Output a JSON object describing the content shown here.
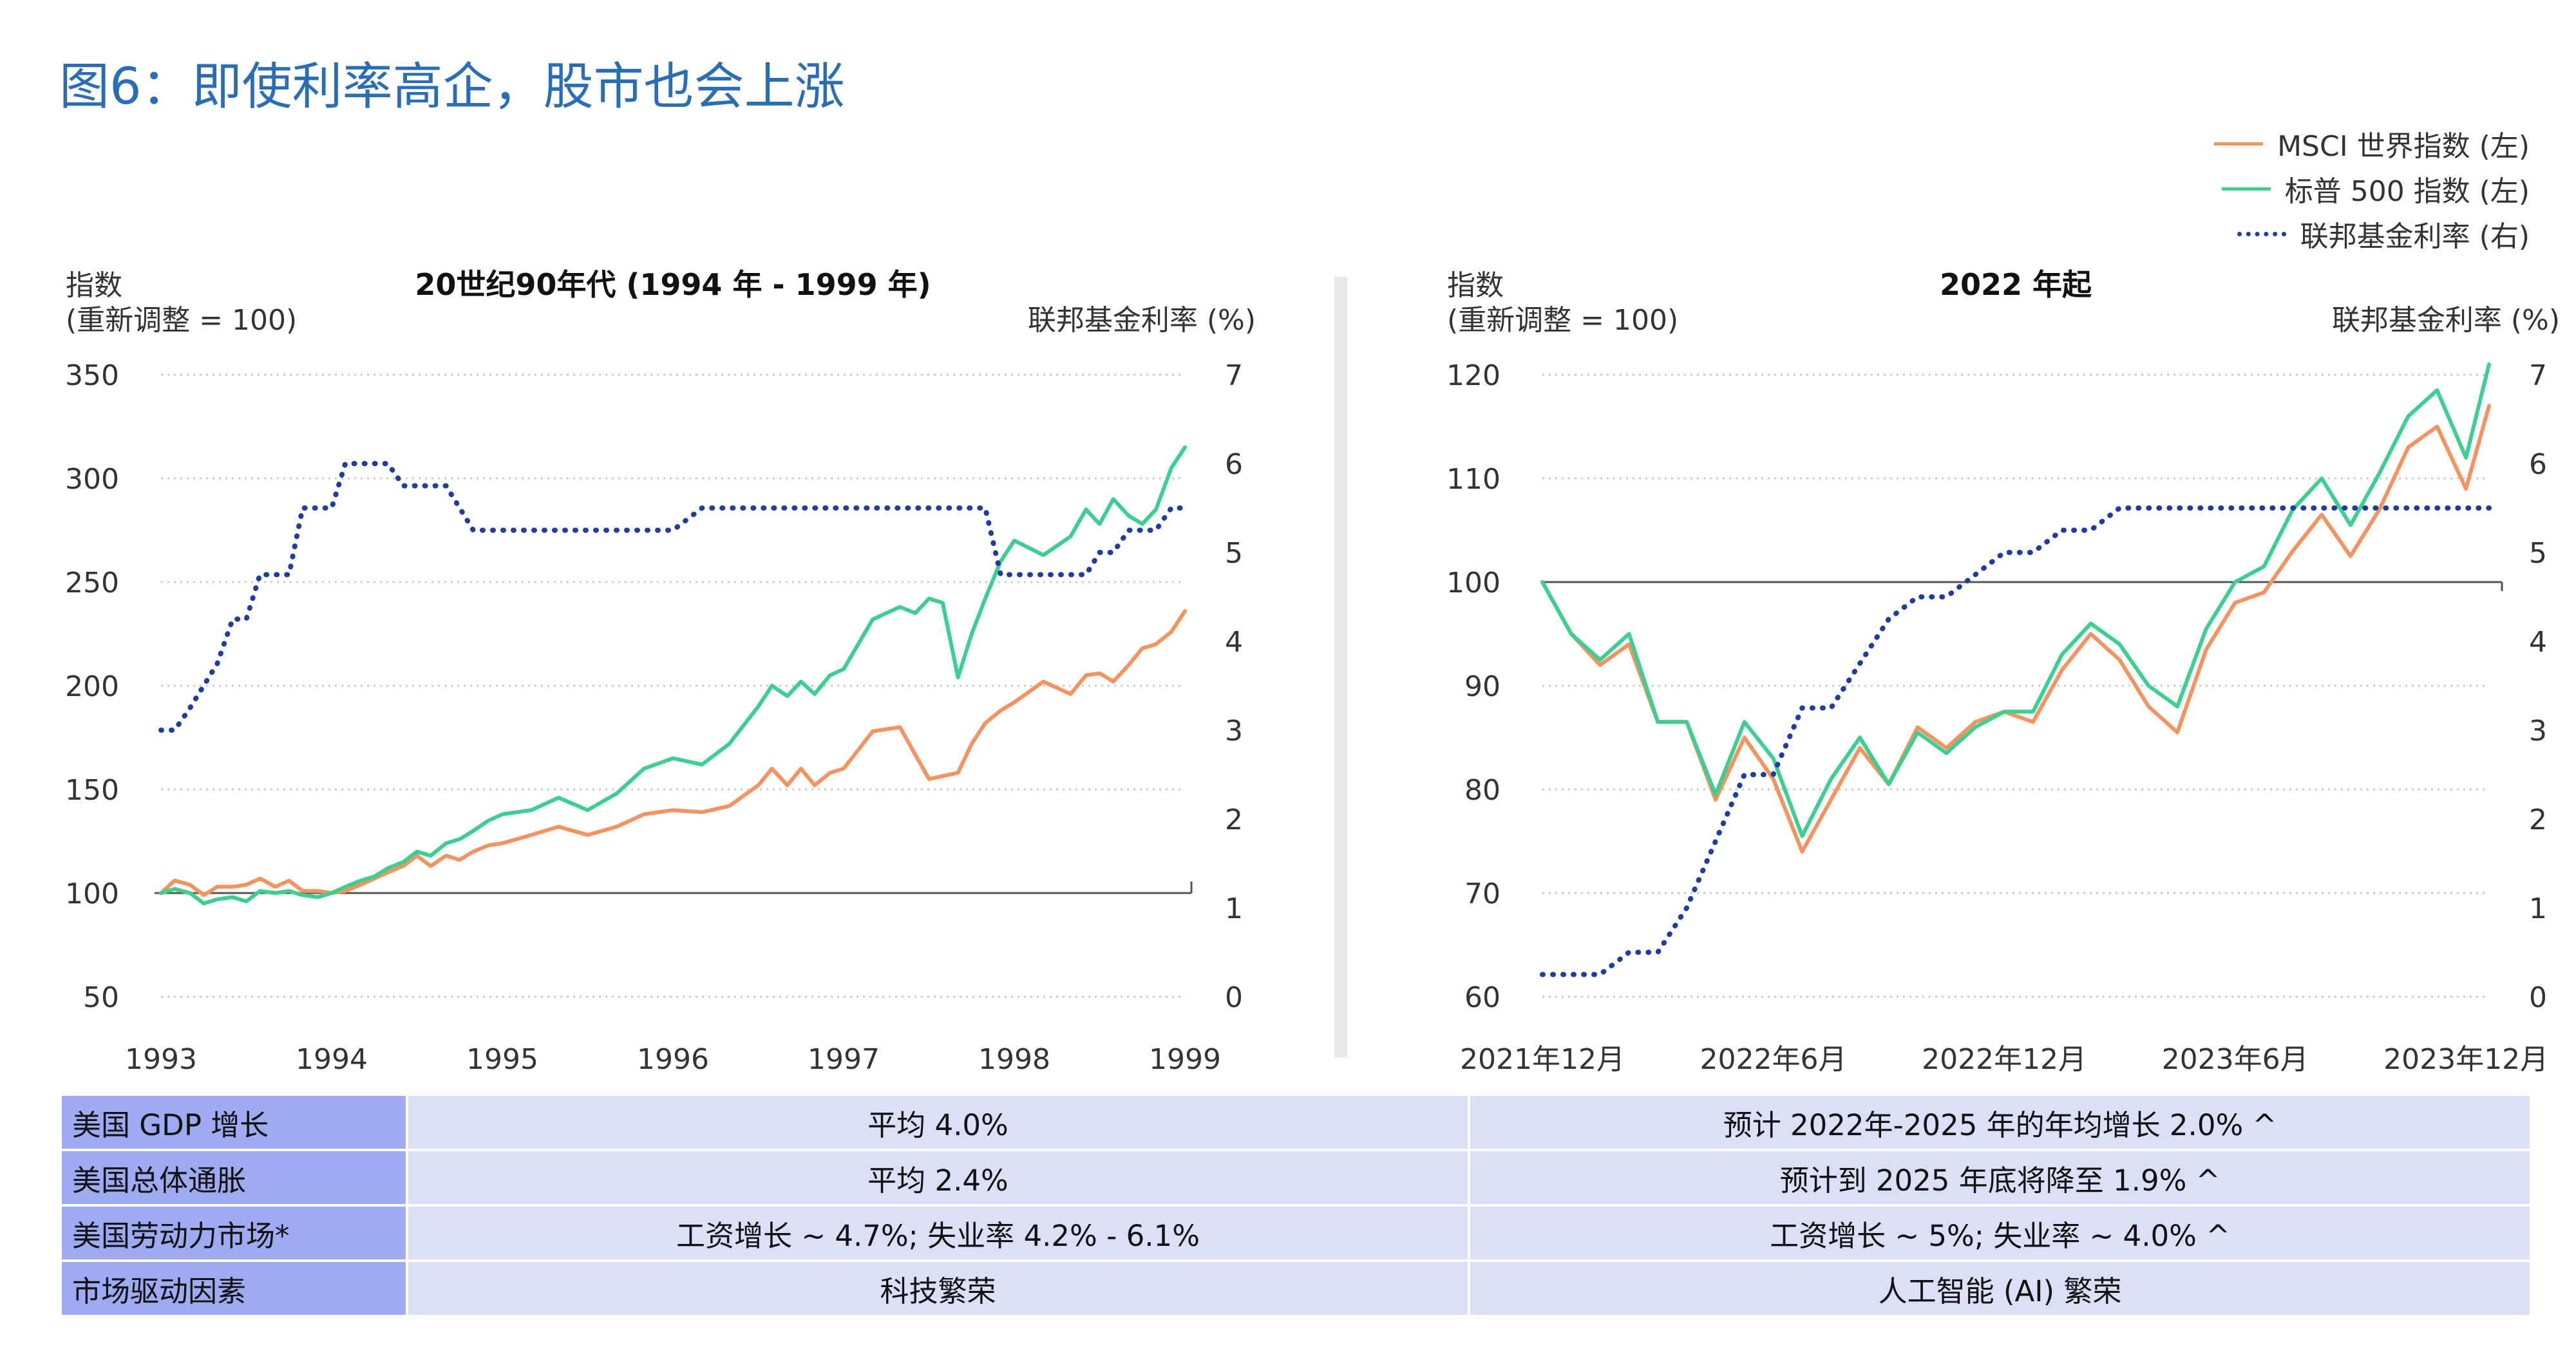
{
  "title": "图6：即使利率高企，股市也会上涨",
  "legend": {
    "msci": "MSCI 世界指数 (左)",
    "sp": "标普 500 指数 (左)",
    "ff": "联邦基金利率 (右)"
  },
  "colors": {
    "title": "#2a6db7",
    "msci": "#f29360",
    "sp": "#3dcf8f",
    "ff": "#1f3d9e",
    "label_bg": "#9eabf2",
    "value_bg": "#dbe0f7"
  },
  "chart_data": [
    {
      "type": "line",
      "title": "20世纪90年代 (1994 年 - 1999 年)",
      "ylabel_left": [
        "指数",
        "(重新调整 = 100)"
      ],
      "ylabel_right": "联邦基金利率 (%)",
      "x_tick_labels": [
        "1993",
        "1994",
        "1995",
        "1996",
        "1997",
        "1998",
        "1999"
      ],
      "x_range": [
        1993,
        1999
      ],
      "y_left_range": [
        50,
        350
      ],
      "y_left_ticks": [
        "350",
        "300",
        "250",
        "200",
        "150",
        "100",
        "50"
      ],
      "y_right_range": [
        0,
        7
      ],
      "y_right_ticks": [
        "7",
        "6",
        "5",
        "4",
        "3",
        "2",
        "1",
        "0"
      ],
      "series": [
        {
          "name": "MSCI 世界指数 (左)",
          "axis": "left",
          "x": [
            1993,
            1993.08,
            1993.17,
            1993.25,
            1993.33,
            1993.42,
            1993.5,
            1993.58,
            1993.67,
            1993.75,
            1993.83,
            1993.92,
            1994,
            1994.08,
            1994.17,
            1994.25,
            1994.33,
            1994.42,
            1994.5,
            1994.58,
            1994.67,
            1994.75,
            1994.83,
            1994.92,
            1995,
            1995.17,
            1995.33,
            1995.5,
            1995.67,
            1995.83,
            1996,
            1996.17,
            1996.33,
            1996.5,
            1996.58,
            1996.67,
            1996.75,
            1996.83,
            1996.92,
            1997,
            1997.17,
            1997.33,
            1997.5,
            1997.67,
            1997.75,
            1997.83,
            1997.92,
            1998,
            1998.17,
            1998.33,
            1998.42,
            1998.5,
            1998.58,
            1998.67,
            1998.75,
            1998.83,
            1998.92,
            1999
          ],
          "values": [
            100,
            106,
            104,
            99,
            103,
            103,
            104,
            107,
            103,
            106,
            101,
            101,
            100,
            101,
            104,
            107,
            110,
            113,
            118,
            113,
            118,
            116,
            120,
            123,
            124,
            128,
            132,
            128,
            132,
            138,
            140,
            139,
            142,
            152,
            160,
            152,
            160,
            152,
            158,
            160,
            178,
            180,
            155,
            158,
            172,
            182,
            188,
            192,
            202,
            196,
            205,
            206,
            202,
            210,
            218,
            220,
            226,
            236
          ]
        },
        {
          "name": "标普 500 指数 (左)",
          "axis": "left",
          "x": [
            1993,
            1993.08,
            1993.17,
            1993.25,
            1993.33,
            1993.42,
            1993.5,
            1993.58,
            1993.67,
            1993.75,
            1993.83,
            1993.92,
            1994,
            1994.08,
            1994.17,
            1994.25,
            1994.33,
            1994.42,
            1994.5,
            1994.58,
            1994.67,
            1994.75,
            1994.83,
            1994.92,
            1995,
            1995.17,
            1995.33,
            1995.5,
            1995.67,
            1995.83,
            1996,
            1996.17,
            1996.33,
            1996.5,
            1996.58,
            1996.67,
            1996.75,
            1996.83,
            1996.92,
            1997,
            1997.17,
            1997.33,
            1997.42,
            1997.5,
            1997.58,
            1997.67,
            1997.75,
            1997.83,
            1997.92,
            1998,
            1998.17,
            1998.33,
            1998.42,
            1998.5,
            1998.58,
            1998.67,
            1998.75,
            1998.83,
            1998.92,
            1999
          ],
          "values": [
            100,
            102,
            100,
            95,
            97,
            98,
            96,
            101,
            100,
            101,
            99,
            98,
            100,
            103,
            106,
            108,
            112,
            115,
            120,
            118,
            124,
            126,
            130,
            135,
            138,
            140,
            146,
            140,
            148,
            160,
            165,
            162,
            172,
            190,
            200,
            195,
            202,
            196,
            205,
            208,
            232,
            238,
            235,
            242,
            240,
            204,
            225,
            242,
            260,
            270,
            263,
            272,
            285,
            278,
            290,
            282,
            278,
            285,
            305,
            315
          ]
        },
        {
          "name": "联邦基金利率 (右)",
          "axis": "right",
          "x": [
            1993,
            1993.08,
            1993.17,
            1993.25,
            1993.33,
            1993.42,
            1993.5,
            1993.58,
            1993.67,
            1993.75,
            1993.83,
            1993.92,
            1994,
            1994.08,
            1994.17,
            1994.25,
            1994.33,
            1994.42,
            1994.5,
            1994.58,
            1994.67,
            1994.75,
            1994.83,
            1994.92,
            1995,
            1995.17,
            1995.33,
            1995.5,
            1995.67,
            1995.83,
            1996,
            1996.17,
            1996.33,
            1996.5,
            1996.58,
            1996.67,
            1996.75,
            1996.83,
            1996.92,
            1997,
            1997.17,
            1997.33,
            1997.42,
            1997.5,
            1997.58,
            1997.67,
            1997.75,
            1997.83,
            1997.92,
            1998,
            1998.17,
            1998.33,
            1998.42,
            1998.5,
            1998.58,
            1998.67,
            1998.75,
            1998.83,
            1998.92,
            1999
          ],
          "values": [
            3.0,
            3.0,
            3.25,
            3.5,
            3.75,
            4.25,
            4.25,
            4.75,
            4.75,
            4.75,
            5.5,
            5.5,
            5.5,
            6.0,
            6.0,
            6.0,
            6.0,
            5.75,
            5.75,
            5.75,
            5.75,
            5.5,
            5.25,
            5.25,
            5.25,
            5.25,
            5.25,
            5.25,
            5.25,
            5.25,
            5.25,
            5.5,
            5.5,
            5.5,
            5.5,
            5.5,
            5.5,
            5.5,
            5.5,
            5.5,
            5.5,
            5.5,
            5.5,
            5.5,
            5.5,
            5.5,
            5.5,
            5.5,
            4.75,
            4.75,
            4.75,
            4.75,
            4.75,
            5.0,
            5.0,
            5.25,
            5.25,
            5.25,
            5.5,
            5.5
          ]
        }
      ]
    },
    {
      "type": "line",
      "title": "2022 年起",
      "ylabel_left": [
        "指数",
        "(重新调整 = 100)"
      ],
      "ylabel_right": "联邦基金利率 (%)",
      "x_tick_labels": [
        "2021年12月",
        "2022年6月",
        "2022年12月",
        "2023年6月",
        "2023年12月"
      ],
      "x_range": [
        0,
        24.6
      ],
      "y_left_range": [
        60,
        120
      ],
      "y_left_ticks": [
        "120",
        "110",
        "100",
        "90",
        "80",
        "70",
        "60"
      ],
      "y_right_range": [
        0,
        7
      ],
      "y_right_ticks": [
        "7",
        "6",
        "5",
        "4",
        "3",
        "2",
        "1",
        "0"
      ],
      "series": [
        {
          "name": "MSCI 世界指数 (左)",
          "axis": "left",
          "x": [
            0,
            0.75,
            1.5,
            2.25,
            3,
            3.75,
            4.5,
            5.25,
            6,
            6.75,
            7.5,
            8.25,
            9,
            9.75,
            10.5,
            11.25,
            12,
            12.75,
            13.5,
            14.25,
            15,
            15.75,
            16.5,
            17.25,
            18,
            18.75,
            19.5,
            20.25,
            21,
            21.75,
            22.5,
            23.25,
            24,
            24.6
          ],
          "values": [
            100,
            95,
            92,
            94,
            86.5,
            86.5,
            79,
            85,
            81,
            74,
            79,
            84,
            80.5,
            86,
            84,
            86.5,
            87.5,
            86.5,
            91.5,
            95,
            92.5,
            88,
            85.5,
            93.5,
            98,
            99,
            103,
            106.5,
            102.5,
            107,
            113,
            115,
            109,
            117
          ]
        },
        {
          "name": "标普 500 指数 (左)",
          "axis": "left",
          "x": [
            0,
            0.75,
            1.5,
            2.25,
            3,
            3.75,
            4.5,
            5.25,
            6,
            6.75,
            7.5,
            8.25,
            9,
            9.75,
            10.5,
            11.25,
            12,
            12.75,
            13.5,
            14.25,
            15,
            15.75,
            16.5,
            17.25,
            18,
            18.75,
            19.5,
            20.25,
            21,
            21.75,
            22.5,
            23.25,
            24,
            24.6
          ],
          "values": [
            100,
            95,
            92.5,
            95,
            86.5,
            86.5,
            79.5,
            86.5,
            83,
            75.5,
            81,
            85,
            80.5,
            85.5,
            83.5,
            86,
            87.5,
            87.5,
            93,
            96,
            94,
            90,
            88,
            95.5,
            100,
            101.5,
            107,
            110,
            105.5,
            110.5,
            116,
            118.5,
            112,
            121
          ]
        },
        {
          "name": "联邦基金利率 (右)",
          "axis": "right",
          "x": [
            0,
            0.75,
            1.5,
            2.25,
            3,
            3.75,
            4.5,
            5.25,
            6,
            6.75,
            7.5,
            8.25,
            9,
            9.75,
            10.5,
            11.25,
            12,
            12.75,
            13.5,
            14.25,
            15,
            15.75,
            16.5,
            17.25,
            18,
            18.75,
            19.5,
            20.25,
            21,
            21.75,
            22.5,
            23.25,
            24,
            24.6
          ],
          "values": [
            0.25,
            0.25,
            0.25,
            0.5,
            0.5,
            1.0,
            1.75,
            2.5,
            2.5,
            3.25,
            3.25,
            3.75,
            4.25,
            4.5,
            4.5,
            4.75,
            5.0,
            5.0,
            5.25,
            5.25,
            5.5,
            5.5,
            5.5,
            5.5,
            5.5,
            5.5,
            5.5,
            5.5,
            5.5,
            5.5,
            5.5,
            5.5,
            5.5,
            5.5
          ]
        }
      ]
    }
  ],
  "macro_table": {
    "rows": [
      {
        "label": "美国 GDP 增长",
        "left": "平均 4.0%",
        "right": "预计 2022年-2025 年的年均增长 2.0% ^"
      },
      {
        "label": "美国总体通胀",
        "left": "平均 2.4%",
        "right": "预计到 2025 年底将降至 1.9% ^"
      },
      {
        "label": "美国劳动力市场*",
        "left": "工资增长 ~ 4.7%; 失业率 4.2% - 6.1%",
        "right": "工资增长 ~ 5%; 失业率 ~ 4.0% ^"
      },
      {
        "label": "市场驱动因素",
        "left": "科技繁荣",
        "right": "人工智能 (AI) 繁荣"
      }
    ]
  }
}
